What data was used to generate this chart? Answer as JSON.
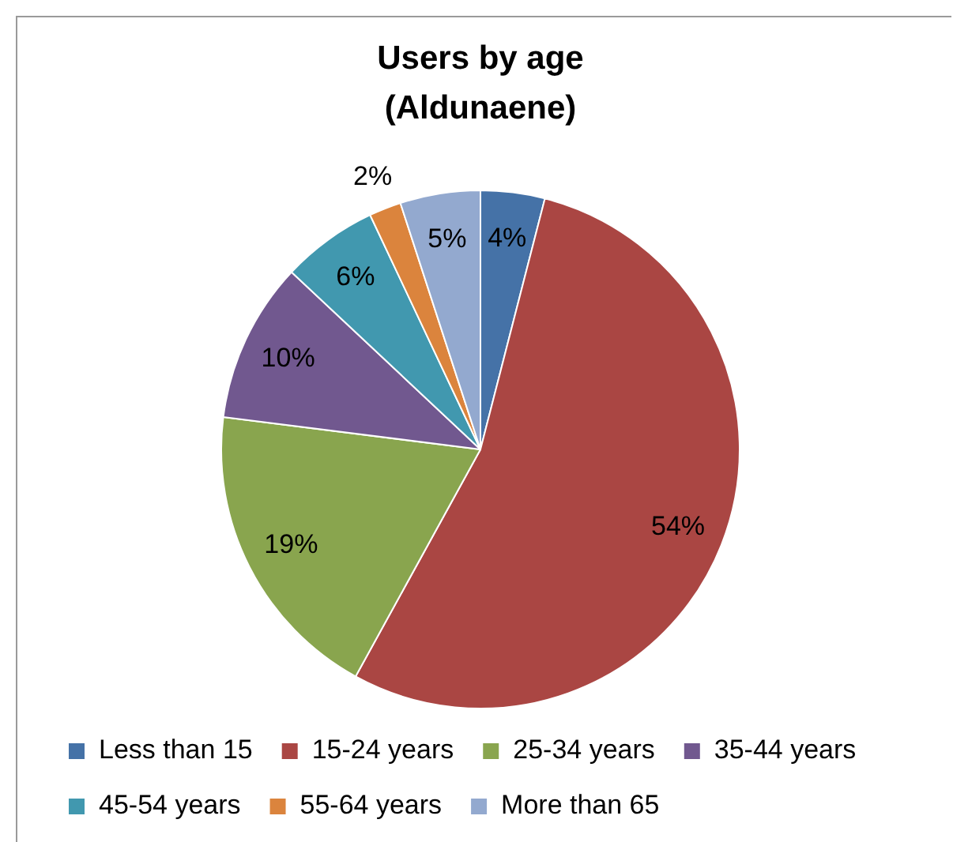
{
  "chart_data": {
    "type": "pie",
    "title": "Users by age (Aldunaene)",
    "categories": [
      "Less than 15",
      "15-24 years",
      "25-34 years",
      "35-44 years",
      "45-54 years",
      "55-64 years",
      "More than 65"
    ],
    "values": [
      4,
      54,
      19,
      10,
      6,
      2,
      5
    ],
    "colors": [
      "#4572a7",
      "#aa4643",
      "#89a54e",
      "#71588f",
      "#4198af",
      "#db843d",
      "#93a9cf"
    ],
    "value_labels": [
      "4%",
      "54%",
      "19%",
      "10%",
      "6%",
      "2%",
      "5%"
    ],
    "legend": "bottom"
  }
}
